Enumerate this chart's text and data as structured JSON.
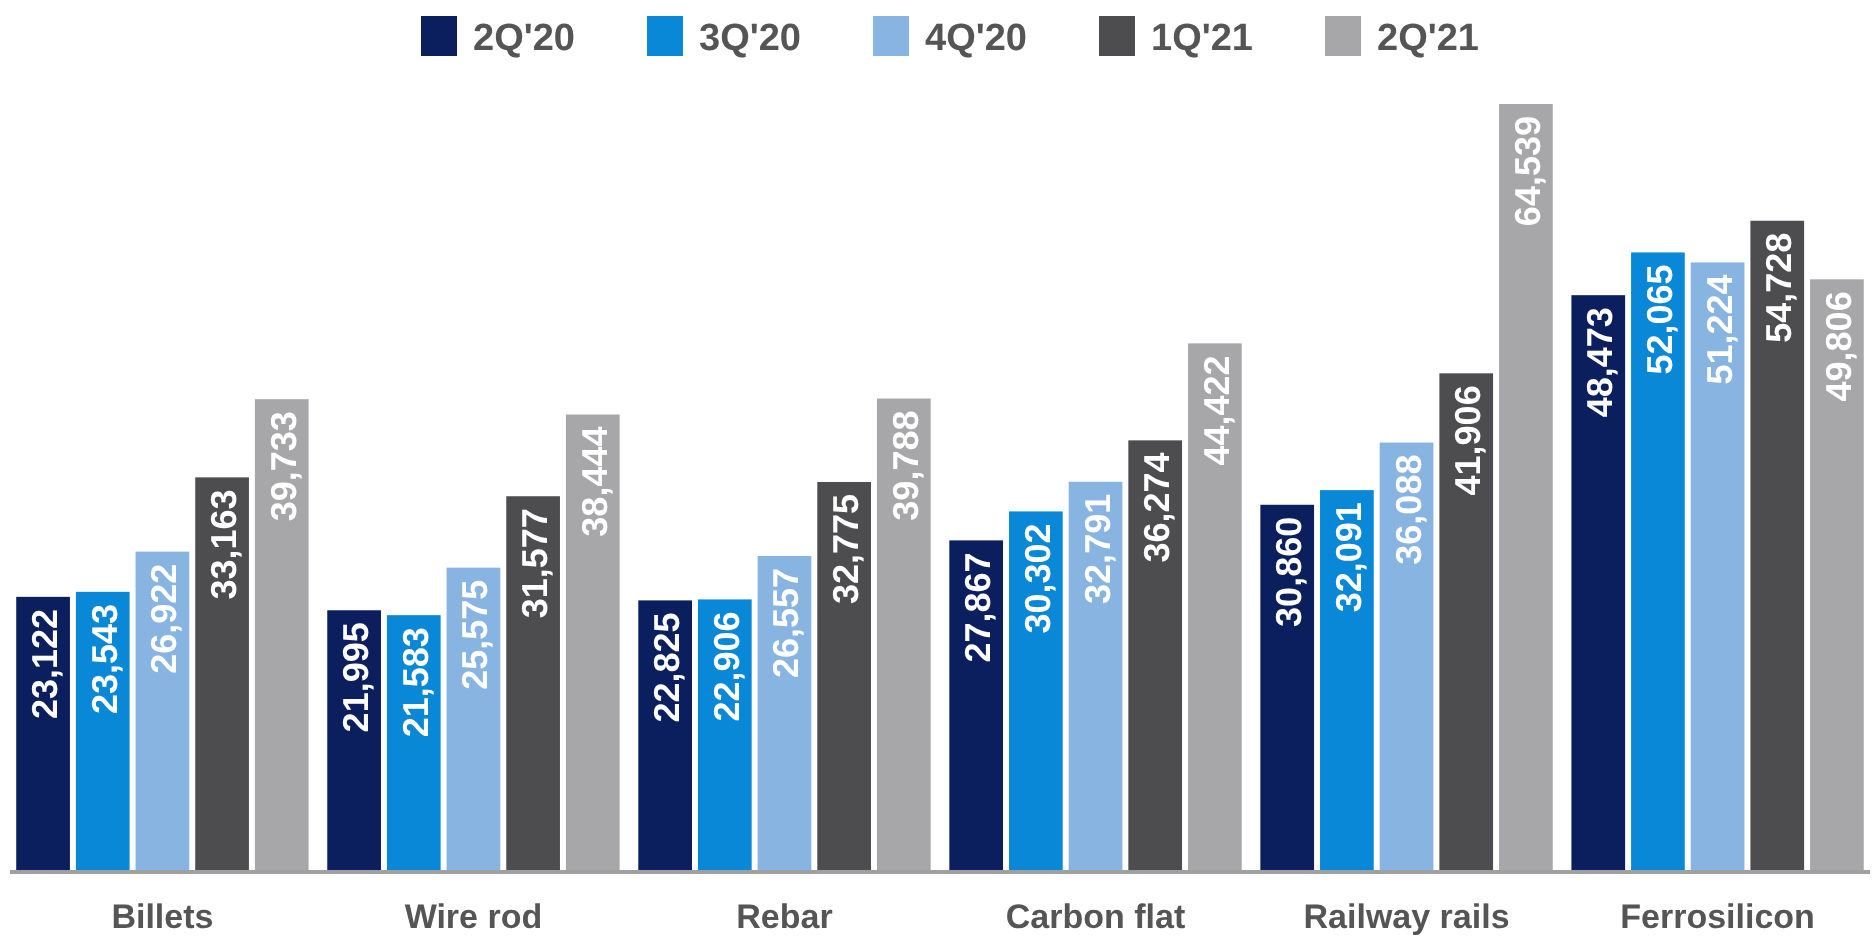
{
  "chart_data": {
    "type": "bar",
    "categories": [
      "Billets",
      "Wire rod",
      "Rebar",
      "Carbon flat",
      "Railway rails",
      "Ferrosilicon"
    ],
    "series": [
      {
        "name": "2Q'20",
        "color": "#0b1f5e",
        "values": [
          23122,
          21995,
          22825,
          27867,
          30860,
          48473
        ],
        "value_labels": [
          "23,122",
          "21,995",
          "22,825",
          "27,867",
          "30,860",
          "48,473"
        ]
      },
      {
        "name": "3Q'20",
        "color": "#0a88d8",
        "values": [
          23543,
          21583,
          22906,
          30302,
          32091,
          52065
        ],
        "value_labels": [
          "23,543",
          "21,583",
          "22,906",
          "30,302",
          "32,091",
          "52,065"
        ]
      },
      {
        "name": "4Q'20",
        "color": "#88b4e2",
        "values": [
          26922,
          25575,
          26557,
          32791,
          36088,
          51224
        ],
        "value_labels": [
          "26,922",
          "25,575",
          "26,557",
          "32,791",
          "36,088",
          "51,224"
        ]
      },
      {
        "name": "1Q'21",
        "color": "#4d4d4f",
        "values": [
          33163,
          31577,
          32775,
          36274,
          41906,
          54728
        ],
        "value_labels": [
          "33,163",
          "31,577",
          "32,775",
          "36,274",
          "41,906",
          "54,728"
        ]
      },
      {
        "name": "2Q'21",
        "color": "#a7a7a9",
        "values": [
          39733,
          38444,
          39788,
          44422,
          64539,
          49806
        ],
        "value_labels": [
          "39,733",
          "38,444",
          "39,788",
          "44,422",
          "64,539",
          "49,806"
        ]
      }
    ],
    "legend": "top"
  }
}
